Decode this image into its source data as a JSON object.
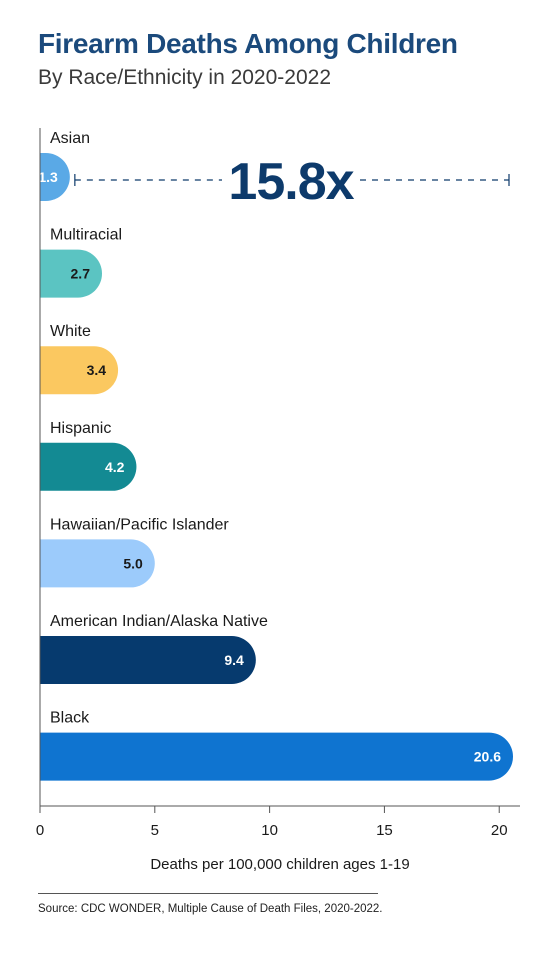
{
  "title": "Firearm Deaths Among Children",
  "subtitle": "By Race/Ethnicity in 2020-2022",
  "annotation": "15.8x",
  "source": "Source: CDC WONDER, Multiple Cause of Death Files, 2020-2022.",
  "chart_data": {
    "type": "bar",
    "orientation": "horizontal",
    "categories": [
      "Asian",
      "Multiracial",
      "White",
      "Hispanic",
      "Hawaiian/Pacific Islander",
      "American Indian/Alaska Native",
      "Black"
    ],
    "values": [
      1.3,
      2.7,
      3.4,
      4.2,
      5.0,
      9.4,
      20.6
    ],
    "data_labels": [
      "1.3",
      "2.7",
      "3.4",
      "4.2",
      "5.0",
      "9.4",
      "20.6"
    ],
    "colors": [
      "#5aa9e6",
      "#5bc4c2",
      "#fbc860",
      "#138a93",
      "#9ccbfb",
      "#063a6e",
      "#0f74d0"
    ],
    "label_colors": [
      "#ffffff",
      "#1a1a1a",
      "#1a1a1a",
      "#ffffff",
      "#1a1a1a",
      "#ffffff",
      "#ffffff"
    ],
    "xlabel": "Deaths per 100,000 children ages 1-19",
    "xlim": [
      0,
      20.6
    ],
    "xticks": [
      0,
      5,
      10,
      15,
      20
    ],
    "grid": false,
    "annotation_color": "#0d3a6b"
  }
}
